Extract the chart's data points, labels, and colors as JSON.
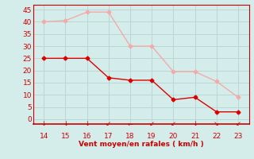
{
  "x": [
    14,
    15,
    16,
    17,
    18,
    19,
    20,
    21,
    22,
    23
  ],
  "y_mean": [
    25,
    25,
    25,
    17,
    16,
    16,
    8,
    9,
    3,
    3
  ],
  "y_gust": [
    40,
    40.5,
    44,
    44,
    30,
    30,
    19.5,
    19.5,
    15.5,
    9
  ],
  "xlabel": "Vent moyen/en rafales ( km/h )",
  "ylim": [
    -2,
    47
  ],
  "xlim": [
    13.5,
    23.5
  ],
  "yticks": [
    0,
    5,
    10,
    15,
    20,
    25,
    30,
    35,
    40,
    45
  ],
  "xticks": [
    14,
    15,
    16,
    17,
    18,
    19,
    20,
    21,
    22,
    23
  ],
  "bg_color": "#d4edeb",
  "grid_color": "#b8d8d5",
  "mean_color": "#dd0000",
  "gust_color": "#f4aaaa",
  "axis_color": "#cc0000",
  "tick_label_color": "#cc0000",
  "xlabel_color": "#cc0000",
  "arrow_color": "#cc0000",
  "arrow_chars": [
    "↓",
    "↓",
    "↓",
    "↙",
    "←",
    "↙",
    "↙",
    "↓",
    "↘",
    "↙"
  ]
}
